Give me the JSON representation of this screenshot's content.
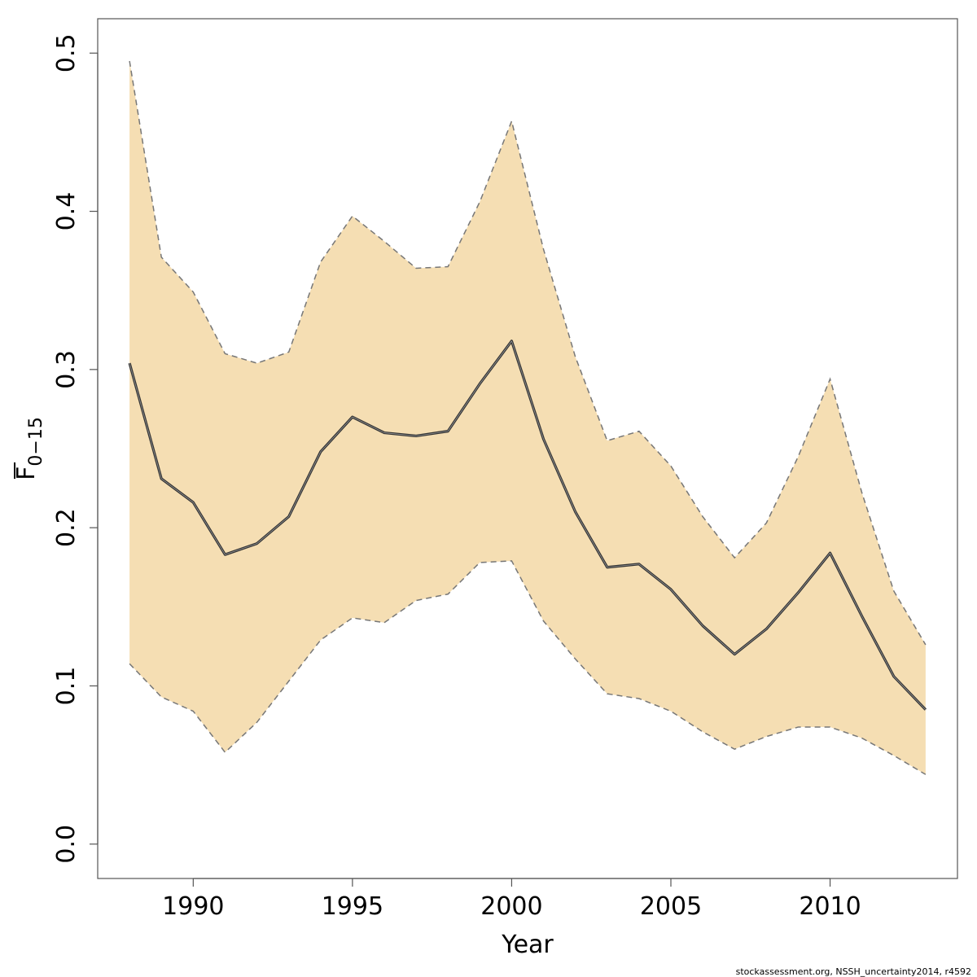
{
  "chart_data": {
    "type": "area",
    "xlabel": "Year",
    "ylabel_main": "F",
    "ylabel_sub": "0−15",
    "xlim": [
      1987,
      2014
    ],
    "ylim": [
      0.0,
      0.5
    ],
    "x_ticks": [
      1990,
      1995,
      2000,
      2005,
      2010
    ],
    "y_ticks": [
      "0.0",
      "0.1",
      "0.2",
      "0.3",
      "0.4",
      "0.5"
    ],
    "grid": false,
    "colors": {
      "band": "#f5deb3",
      "median": "#333333",
      "bounds": "#777777"
    },
    "x": [
      1988,
      1989,
      1990,
      1991,
      1992,
      1993,
      1994,
      1995,
      1996,
      1997,
      1998,
      1999,
      2000,
      2001,
      2002,
      2003,
      2004,
      2005,
      2006,
      2007,
      2008,
      2009,
      2010,
      2011,
      2012,
      2013
    ],
    "series": [
      {
        "values": [
          0.304,
          0.231,
          0.216,
          0.183,
          0.19,
          0.207,
          0.248,
          0.27,
          0.26,
          0.258,
          0.261,
          0.291,
          0.318,
          0.256,
          0.21,
          0.175,
          0.177,
          0.161,
          0.138,
          0.12,
          0.136,
          0.159,
          0.184,
          0.144,
          0.106,
          0.085
        ]
      },
      {
        "values": [
          0.495,
          0.371,
          0.349,
          0.31,
          0.304,
          0.311,
          0.368,
          0.397,
          0.381,
          0.364,
          0.365,
          0.406,
          0.457,
          0.376,
          0.308,
          0.255,
          0.261,
          0.239,
          0.207,
          0.181,
          0.203,
          0.245,
          0.294,
          0.222,
          0.16,
          0.126
        ]
      },
      {
        "values": [
          0.114,
          0.093,
          0.084,
          0.058,
          0.077,
          0.103,
          0.129,
          0.143,
          0.14,
          0.154,
          0.158,
          0.178,
          0.179,
          0.141,
          0.117,
          0.095,
          0.092,
          0.084,
          0.071,
          0.06,
          0.068,
          0.074,
          0.074,
          0.067,
          0.056,
          0.044
        ]
      }
    ]
  },
  "credit": "stockassessment.org, NSSH_uncertainty2014, r4592"
}
